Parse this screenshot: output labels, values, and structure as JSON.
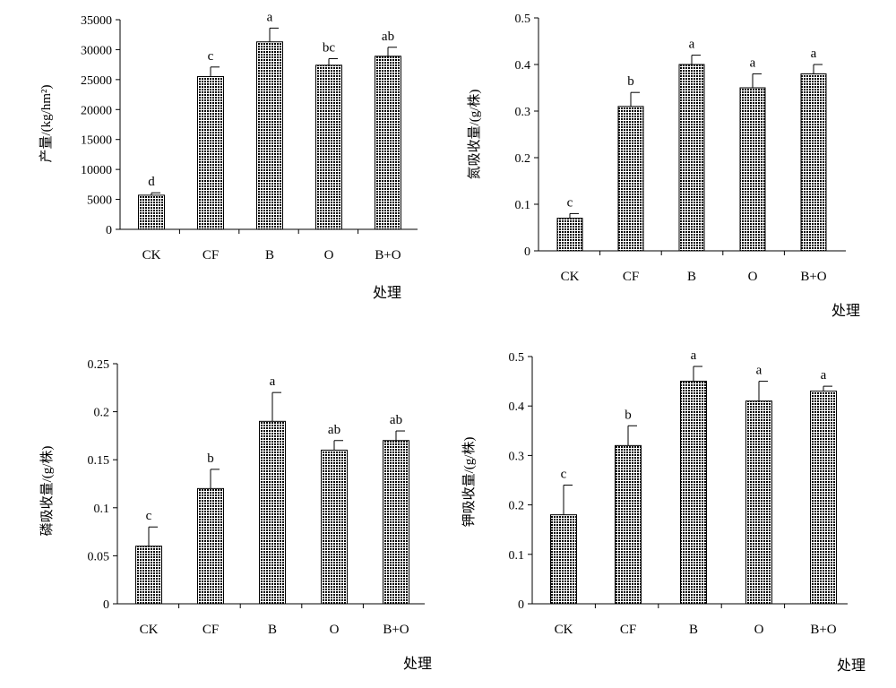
{
  "pattern_colors": {
    "fill": "#ffffff",
    "dot": "#000000"
  },
  "chart_data": [
    {
      "type": "bar",
      "categories": [
        "CK",
        "CF",
        "B",
        "O",
        "B+O"
      ],
      "values": [
        5700,
        25500,
        31300,
        27400,
        28900
      ],
      "errors": [
        400,
        1600,
        2300,
        1100,
        1500
      ],
      "sig_letters": [
        "d",
        "c",
        "a",
        "bc",
        "ab"
      ],
      "ylabel": "产量/(kg/hm²)",
      "xlabel": "处理",
      "ylim": [
        0,
        35000
      ],
      "yticks": [
        0,
        5000,
        10000,
        15000,
        20000,
        25000,
        30000,
        35000
      ],
      "ytick_labels": [
        "0",
        "5000",
        "10000",
        "15000",
        "20000",
        "25000",
        "30000",
        "35000"
      ]
    },
    {
      "type": "bar",
      "categories": [
        "CK",
        "CF",
        "B",
        "O",
        "B+O"
      ],
      "values": [
        0.07,
        0.31,
        0.4,
        0.35,
        0.38
      ],
      "errors": [
        0.01,
        0.03,
        0.02,
        0.03,
        0.02
      ],
      "sig_letters": [
        "c",
        "b",
        "a",
        "a",
        "a"
      ],
      "ylabel": "氮吸收量/(g/株)",
      "xlabel": "处理",
      "ylim": [
        0,
        0.5
      ],
      "yticks": [
        0,
        0.1,
        0.2,
        0.3,
        0.4,
        0.5
      ],
      "ytick_labels": [
        "0",
        "0.1",
        "0.2",
        "0.3",
        "0.4",
        "0.5"
      ]
    },
    {
      "type": "bar",
      "categories": [
        "CK",
        "CF",
        "B",
        "O",
        "B+O"
      ],
      "values": [
        0.06,
        0.12,
        0.19,
        0.16,
        0.17
      ],
      "errors": [
        0.02,
        0.02,
        0.03,
        0.01,
        0.01
      ],
      "sig_letters": [
        "c",
        "b",
        "a",
        "ab",
        "ab"
      ],
      "ylabel": "磷吸收量/(g/株)",
      "xlabel": "处理",
      "ylim": [
        0,
        0.25
      ],
      "yticks": [
        0,
        0.05,
        0.1,
        0.15,
        0.2,
        0.25
      ],
      "ytick_labels": [
        "0",
        "0.05",
        "0.1",
        "0.15",
        "0.2",
        "0.25"
      ]
    },
    {
      "type": "bar",
      "categories": [
        "CK",
        "CF",
        "B",
        "O",
        "B+O"
      ],
      "values": [
        0.18,
        0.32,
        0.45,
        0.41,
        0.43
      ],
      "errors": [
        0.06,
        0.04,
        0.03,
        0.04,
        0.01
      ],
      "sig_letters": [
        "c",
        "b",
        "a",
        "a",
        "a"
      ],
      "ylabel": "钾吸收量/(g/株)",
      "xlabel": "处理",
      "ylim": [
        0,
        0.5
      ],
      "yticks": [
        0,
        0.1,
        0.2,
        0.3,
        0.4,
        0.5
      ],
      "ytick_labels": [
        "0",
        "0.1",
        "0.2",
        "0.3",
        "0.4",
        "0.5"
      ]
    }
  ]
}
